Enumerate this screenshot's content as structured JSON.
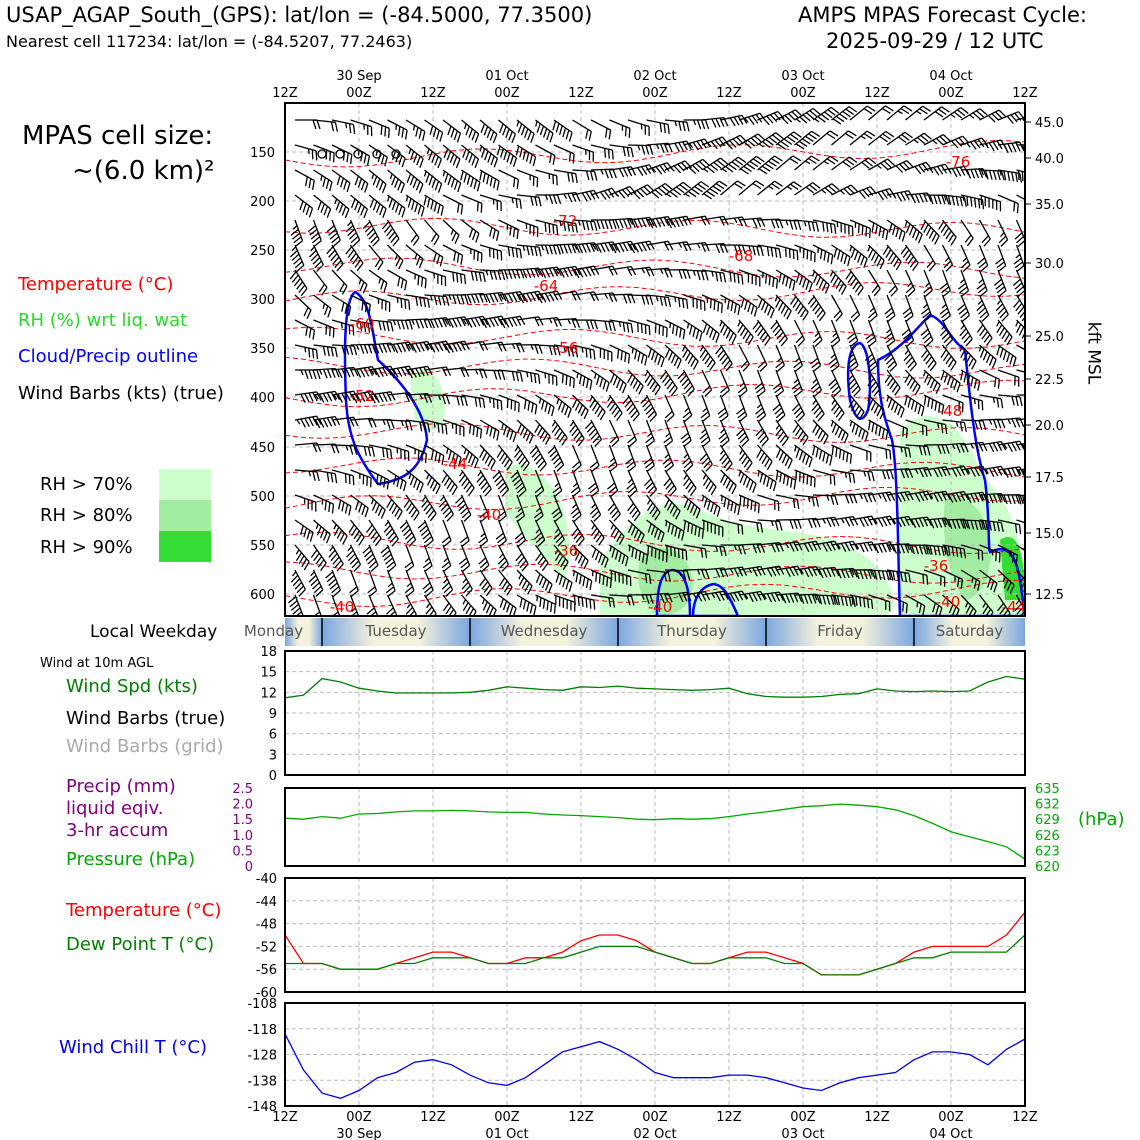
{
  "header": {
    "title_left": "USAP_AGAP_South_(GPS): lat/lon = (-84.5000, 77.3500)",
    "subtitle_left": "Nearest cell 117234: lat/lon = (-84.5207, 77.2463)",
    "title_right_1": "AMPS MPAS Forecast Cycle:",
    "title_right_2": "2025-09-29 / 12 UTC"
  },
  "cell_size": {
    "line1": "MPAS cell size:",
    "line2": "~(6.0 km)²"
  },
  "legend": {
    "temperature": "Temperature (°C)",
    "rh": "RH (%) wrt liq. wat",
    "cloud": "Cloud/Precip outline",
    "wind": "Wind Barbs (kts) (true)",
    "rh70": "RH > 70%",
    "rh80": "RH > 80%",
    "rh90": "RH > 90%"
  },
  "colors": {
    "temp": "#ff0000",
    "rh": "#22dd22",
    "cloud": "#0000ff",
    "wind": "#000000",
    "precip": "#800080",
    "pressure": "#00aa00",
    "dew": "#008000",
    "windchill": "#0000ee",
    "rh70": "#ccffcc",
    "rh80": "#a3eda3",
    "rh90": "#33dd33"
  },
  "time_axis": {
    "hour_labels": [
      "12Z",
      "00Z",
      "12Z",
      "00Z",
      "12Z",
      "00Z",
      "12Z",
      "00Z",
      "12Z",
      "00Z",
      "12Z"
    ],
    "date_labels": [
      "30 Sep",
      "01 Oct",
      "02 Oct",
      "03 Oct",
      "04 Oct"
    ]
  },
  "main_panel": {
    "ylabel_right": "kft MSL",
    "pressure_ticks": [
      "150",
      "200",
      "250",
      "300",
      "350",
      "400",
      "450",
      "500",
      "550",
      "600"
    ],
    "height_ticks": [
      "45.0",
      "40.0",
      "35.0",
      "30.0",
      "25.0",
      "22.5",
      "20.0",
      "17.5",
      "15.0",
      "12.5"
    ],
    "contour_labels": [
      "-76",
      "-72",
      "-68",
      "-64",
      "-60",
      "-56",
      "-52",
      "-48",
      "-44",
      "-40",
      "-36",
      "-36",
      "-40",
      "-40",
      "-40",
      "-44"
    ]
  },
  "weekday_band": {
    "label": "Local Weekday",
    "days": [
      "Monday",
      "Tuesday",
      "Wednesday",
      "Thursday",
      "Friday",
      "Saturday"
    ]
  },
  "wind_panel": {
    "title": "Wind at 10m AGL",
    "spd_label": "Wind Spd (kts)",
    "barbs_true": "Wind Barbs (true)",
    "barbs_grid": "Wind Barbs (grid)",
    "yticks": [
      "18",
      "15",
      "12",
      "9",
      "6",
      "3",
      "0"
    ]
  },
  "precip_panel": {
    "precip_l1": "Precip (mm)",
    "precip_l2": "liquid eqiv.",
    "precip_l3": "3-hr accum",
    "pressure_label": "Pressure (hPa)",
    "left_ticks": [
      "2.5",
      "2.0",
      "1.5",
      "1.0",
      "0.5",
      "0"
    ],
    "right_ticks": [
      "635",
      "632",
      "629",
      "626",
      "623",
      "620"
    ],
    "right_unit": "(hPa)"
  },
  "temp_panel": {
    "temp_label": "Temperature (°C)",
    "dew_label": "Dew Point T (°C)",
    "yticks": [
      "-40",
      "-44",
      "-48",
      "-52",
      "-56",
      "-60"
    ]
  },
  "chill_panel": {
    "label": "Wind Chill T (°C)",
    "yticks": [
      "-108",
      "-118",
      "-128",
      "-138",
      "-148"
    ]
  },
  "chart_data": [
    {
      "type": "line",
      "title": "Wind at 10m AGL",
      "ylabel": "Wind Spd (kts)",
      "ylim": [
        0,
        18
      ],
      "x_hours": [
        0,
        3,
        6,
        9,
        12,
        15,
        18,
        21,
        24,
        27,
        30,
        33,
        36,
        39,
        42,
        45,
        48,
        51,
        54,
        57,
        60,
        63,
        66,
        69,
        72,
        75,
        78,
        81,
        84,
        87,
        90,
        93,
        96,
        99,
        102,
        105,
        108,
        111,
        114,
        117,
        120
      ],
      "series": [
        {
          "name": "Wind Spd (kts)",
          "values": [
            11.2,
            11.6,
            14.0,
            13.5,
            12.6,
            12.2,
            11.9,
            11.9,
            11.9,
            11.9,
            12.0,
            12.3,
            12.8,
            12.6,
            12.4,
            12.3,
            12.8,
            12.7,
            12.9,
            12.6,
            12.5,
            12.4,
            12.3,
            12.4,
            12.6,
            11.8,
            11.4,
            11.3,
            11.3,
            11.4,
            11.7,
            11.8,
            12.5,
            12.2,
            12.1,
            12.2,
            12.1,
            12.2,
            13.5,
            14.3,
            13.9
          ]
        }
      ]
    },
    {
      "type": "line",
      "title": "Pressure (hPa)",
      "ylabel": "Pressure (hPa)",
      "ylim": [
        620,
        635
      ],
      "x_hours": [
        0,
        3,
        6,
        9,
        12,
        15,
        18,
        21,
        24,
        27,
        30,
        33,
        36,
        39,
        42,
        45,
        48,
        51,
        54,
        57,
        60,
        63,
        66,
        69,
        72,
        75,
        78,
        81,
        84,
        87,
        90,
        93,
        96,
        99,
        102,
        105,
        108,
        111,
        114,
        117,
        120
      ],
      "series": [
        {
          "name": "Pressure (hPa)",
          "values": [
            629.2,
            629.0,
            629.5,
            629.2,
            630.0,
            630.1,
            630.4,
            630.6,
            630.6,
            630.7,
            630.6,
            630.4,
            630.3,
            630.3,
            630.0,
            629.8,
            629.7,
            629.5,
            629.3,
            629.0,
            628.9,
            629.1,
            629.0,
            629.1,
            629.5,
            630.0,
            630.4,
            630.9,
            631.4,
            631.6,
            631.9,
            631.7,
            631.4,
            630.8,
            629.7,
            628.2,
            626.6,
            625.6,
            624.7,
            623.7,
            621.3
          ]
        }
      ]
    },
    {
      "type": "line",
      "title": "Temperature / Dew Point",
      "ylabel": "°C",
      "ylim": [
        -60,
        -40
      ],
      "x_hours": [
        0,
        3,
        6,
        9,
        12,
        15,
        18,
        21,
        24,
        27,
        30,
        33,
        36,
        39,
        42,
        45,
        48,
        51,
        54,
        57,
        60,
        63,
        66,
        69,
        72,
        75,
        78,
        81,
        84,
        87,
        90,
        93,
        96,
        99,
        102,
        105,
        108,
        111,
        114,
        117,
        120
      ],
      "series": [
        {
          "name": "Temperature (°C)",
          "values": [
            -50,
            -55,
            -55,
            -56,
            -56,
            -56,
            -55,
            -54,
            -53,
            -53,
            -54,
            -55,
            -55,
            -54,
            -54,
            -53,
            -51,
            -50,
            -50,
            -51,
            -53,
            -54,
            -55,
            -55,
            -54,
            -53,
            -53,
            -54,
            -55,
            -57,
            -57,
            -57,
            -56,
            -55,
            -53,
            -52,
            -52,
            -52,
            -52,
            -50,
            -46
          ]
        },
        {
          "name": "Dew Point T (°C)",
          "values": [
            -55,
            -55,
            -55,
            -56,
            -56,
            -56,
            -55,
            -55,
            -54,
            -54,
            -54,
            -55,
            -55,
            -55,
            -54,
            -54,
            -53,
            -52,
            -52,
            -52,
            -53,
            -54,
            -55,
            -55,
            -54,
            -54,
            -54,
            -55,
            -55,
            -57,
            -57,
            -57,
            -56,
            -55,
            -54,
            -54,
            -53,
            -53,
            -53,
            -53,
            -50
          ]
        }
      ]
    },
    {
      "type": "line",
      "title": "Wind Chill",
      "ylabel": "Wind Chill T (°C)",
      "ylim": [
        -148,
        -108
      ],
      "x_hours": [
        0,
        3,
        6,
        9,
        12,
        15,
        18,
        21,
        24,
        27,
        30,
        33,
        36,
        39,
        42,
        45,
        48,
        51,
        54,
        57,
        60,
        63,
        66,
        69,
        72,
        75,
        78,
        81,
        84,
        87,
        90,
        93,
        96,
        99,
        102,
        105,
        108,
        111,
        114,
        117,
        120
      ],
      "series": [
        {
          "name": "Wind Chill T (°C)",
          "values": [
            -120,
            -134,
            -143,
            -145,
            -142,
            -137,
            -135,
            -131,
            -130,
            -132,
            -136,
            -139,
            -140,
            -137,
            -132,
            -127,
            -125,
            -123,
            -126,
            -130,
            -135,
            -137,
            -137,
            -137,
            -136,
            -136,
            -137,
            -139,
            -141,
            -142,
            -139,
            -137,
            -136,
            -135,
            -130,
            -127,
            -127,
            -128,
            -132,
            -126,
            -122
          ]
        }
      ]
    }
  ]
}
